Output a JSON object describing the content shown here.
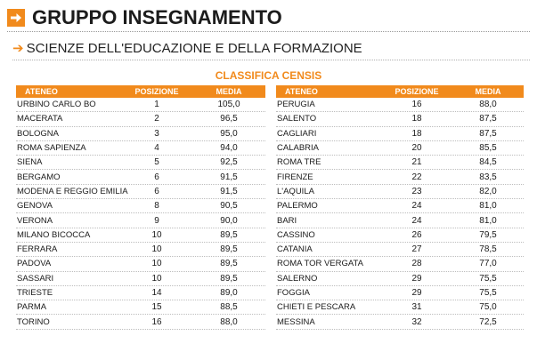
{
  "header": {
    "title": "GRUPPO INSEGNAMENTO",
    "subtitle": "SCIENZE DELL'EDUCAZIONE E DELLA FORMAZIONE",
    "ranking_label": "CLASSIFICA CENSIS",
    "accent_color": "#f18a1c"
  },
  "columns": {
    "ateneo": "ATENEO",
    "posizione": "POSIZIONE",
    "media": "MEDIA"
  },
  "left_rows": [
    {
      "ateneo": "URBINO CARLO BO",
      "posizione": "1",
      "media": "105,0"
    },
    {
      "ateneo": "MACERATA",
      "posizione": "2",
      "media": "96,5"
    },
    {
      "ateneo": "BOLOGNA",
      "posizione": "3",
      "media": "95,0"
    },
    {
      "ateneo": "ROMA SAPIENZA",
      "posizione": "4",
      "media": "94,0"
    },
    {
      "ateneo": "SIENA",
      "posizione": "5",
      "media": "92,5"
    },
    {
      "ateneo": "BERGAMO",
      "posizione": "6",
      "media": "91,5"
    },
    {
      "ateneo": "MODENA E REGGIO EMILIA",
      "posizione": "6",
      "media": "91,5"
    },
    {
      "ateneo": "GENOVA",
      "posizione": "8",
      "media": "90,5"
    },
    {
      "ateneo": "VERONA",
      "posizione": "9",
      "media": "90,0"
    },
    {
      "ateneo": "MILANO BICOCCA",
      "posizione": "10",
      "media": "89,5"
    },
    {
      "ateneo": "FERRARA",
      "posizione": "10",
      "media": "89,5"
    },
    {
      "ateneo": "PADOVA",
      "posizione": "10",
      "media": "89,5"
    },
    {
      "ateneo": "SASSARI",
      "posizione": "10",
      "media": "89,5"
    },
    {
      "ateneo": "TRIESTE",
      "posizione": "14",
      "media": "89,0"
    },
    {
      "ateneo": "PARMA",
      "posizione": "15",
      "media": "88,5"
    },
    {
      "ateneo": "TORINO",
      "posizione": "16",
      "media": "88,0"
    }
  ],
  "right_rows": [
    {
      "ateneo": "PERUGIA",
      "posizione": "16",
      "media": "88,0"
    },
    {
      "ateneo": "SALENTO",
      "posizione": "18",
      "media": "87,5"
    },
    {
      "ateneo": "CAGLIARI",
      "posizione": "18",
      "media": "87,5"
    },
    {
      "ateneo": "CALABRIA",
      "posizione": "20",
      "media": "85,5"
    },
    {
      "ateneo": "ROMA TRE",
      "posizione": "21",
      "media": "84,5"
    },
    {
      "ateneo": "FIRENZE",
      "posizione": "22",
      "media": "83,5"
    },
    {
      "ateneo": "L'AQUILA",
      "posizione": "23",
      "media": "82,0"
    },
    {
      "ateneo": "PALERMO",
      "posizione": "24",
      "media": "81,0"
    },
    {
      "ateneo": "BARI",
      "posizione": "24",
      "media": "81,0"
    },
    {
      "ateneo": "CASSINO",
      "posizione": "26",
      "media": "79,5"
    },
    {
      "ateneo": "CATANIA",
      "posizione": "27",
      "media": "78,5"
    },
    {
      "ateneo": "ROMA TOR VERGATA",
      "posizione": "28",
      "media": "77,0"
    },
    {
      "ateneo": "SALERNO",
      "posizione": "29",
      "media": "75,5"
    },
    {
      "ateneo": "FOGGIA",
      "posizione": "29",
      "media": "75,5"
    },
    {
      "ateneo": "CHIETI E PESCARA",
      "posizione": "31",
      "media": "75,0"
    },
    {
      "ateneo": "MESSINA",
      "posizione": "32",
      "media": "72,5"
    }
  ]
}
